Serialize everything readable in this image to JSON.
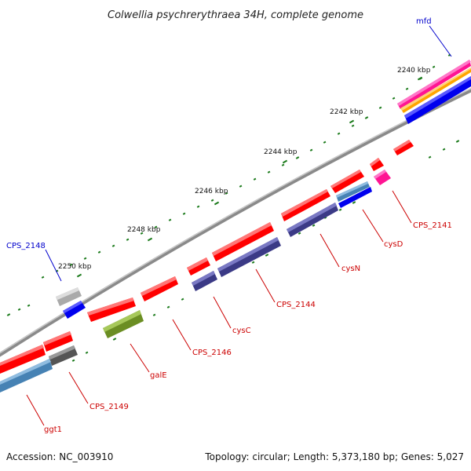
{
  "title": "Colwellia psychrerythraea 34H, complete genome",
  "footer": {
    "accession": "Accession: NC_003910",
    "summary": "Topology: circular; Length: 5,373,180 bp; Genes: 5,027"
  },
  "scale_labels": [
    "2240 kbp",
    "2242 kbp",
    "2244 kbp",
    "2246 kbp",
    "2248 kbp",
    "2250 kbp"
  ],
  "gene_labels": {
    "mfd": "mfd",
    "cps2148": "CPS_2148",
    "cps2141": "CPS_2141",
    "cysd": "cysD",
    "cysn": "cysN",
    "cps2144": "CPS_2144",
    "cysc": "cysC",
    "cps2146": "CPS_2146",
    "gale": "galE",
    "cps2149": "CPS_2149",
    "ggt1": "ggt1"
  },
  "colors": {
    "forward_gene": "#ff0000",
    "cds_blue": "#0000ee",
    "cds_purple": "#3b3a86",
    "cds_steel": "#4682b4",
    "cds_olive": "#6b8e23",
    "cds_pink": "#ff1493",
    "cds_orange": "#ffa500",
    "backbone": "#888888",
    "label_blue": "#0000cc",
    "label_red": "#cc0000",
    "tick_green": "#1a7a1a"
  }
}
